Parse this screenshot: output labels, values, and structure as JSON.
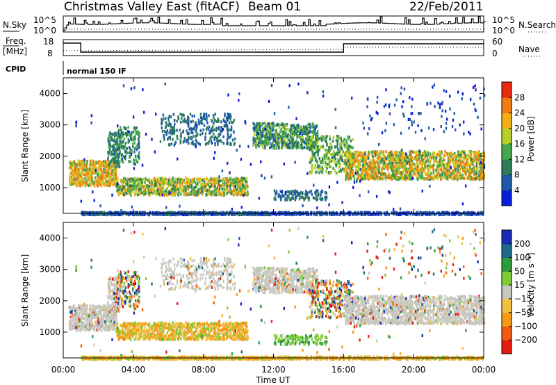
{
  "header": {
    "title_main": "Christmas Valley East (fitACF)",
    "title_beam": "Beam 01",
    "date": "22/Feb/2011"
  },
  "panels": {
    "nsky": {
      "left_label": "N.Sky",
      "right_label": "N.Search",
      "left_ticks": [
        "10^5",
        "10^0"
      ],
      "right_ticks": [
        "10^5",
        "10^0"
      ]
    },
    "freq": {
      "left_label_1": "Freq.",
      "left_label_2": "[MHz]",
      "right_label": "Nave",
      "left_ticks": [
        "18",
        "8"
      ],
      "right_ticks": [
        "60",
        "0"
      ]
    },
    "cpid": {
      "left_label": "CPID",
      "text": "normal 150 IF"
    }
  },
  "chart_data": [
    {
      "type": "heatmap",
      "name": "power",
      "ylabel": "Slant Range [km]",
      "ylim": [
        180,
        4500
      ],
      "yticks": [
        "1000",
        "2000",
        "3000",
        "4000"
      ],
      "colorbar": {
        "label": "Power [dB]",
        "ticks": [
          "4",
          "8",
          "12",
          "16",
          "20",
          "24",
          "28"
        ],
        "colors": [
          "#0a1ed8",
          "#1f5aa8",
          "#2d7d5a",
          "#49a74b",
          "#b8cf2a",
          "#f3b015",
          "#f07b12",
          "#ea2a10"
        ],
        "range": [
          0,
          32
        ]
      }
    },
    {
      "type": "heatmap",
      "name": "velocity",
      "ylabel": "Slant Range [km]",
      "xlabel": "Time UT",
      "ylim": [
        180,
        4500
      ],
      "yticks": [
        "1000",
        "2000",
        "3000",
        "4000"
      ],
      "xticks": [
        "00:00",
        "04:00",
        "08:00",
        "12:00",
        "16:00",
        "20:00",
        "00:00"
      ],
      "colorbar": {
        "label": "Velocity [m s⁻¹]",
        "ticks": [
          "200",
          "100",
          "50",
          "15",
          "−15",
          "−50",
          "−100",
          "−200"
        ],
        "colors": [
          "#1a2bb5",
          "#1e6a8a",
          "#2e9a3a",
          "#7fcc3a",
          "#c8c8c0",
          "#f0c040",
          "#f59a18",
          "#f05a10",
          "#e51a10"
        ]
      }
    }
  ],
  "colors": {
    "pow_low": "#0a1ed8",
    "pow_high": "#ea2a10",
    "vel_grey": "#c8c8c0",
    "vel_orange": "#f4a20c"
  }
}
